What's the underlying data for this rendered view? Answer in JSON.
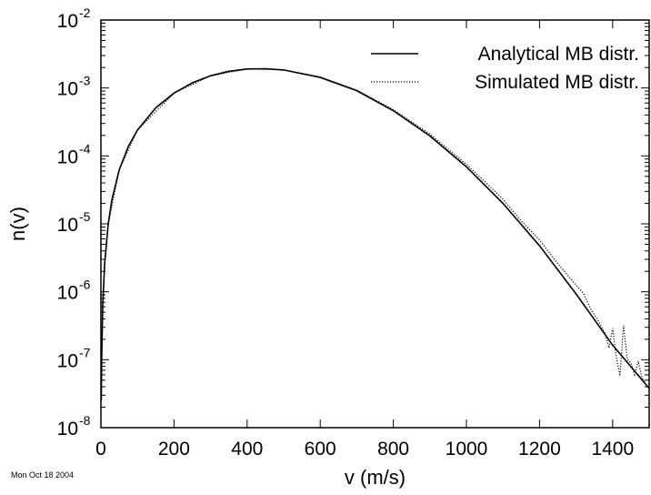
{
  "chart_data": {
    "type": "line",
    "title": "",
    "xlabel": "v (m/s)",
    "ylabel": "n(v)",
    "xlim": [
      0,
      1500
    ],
    "ylim": [
      1e-08,
      0.01
    ],
    "y_scale": "log",
    "grid": false,
    "legend_position": "top-right",
    "x_ticks": [
      0,
      200,
      400,
      600,
      800,
      1000,
      1200,
      1400
    ],
    "x_tick_labels": [
      "0",
      "200",
      "400",
      "600",
      "800",
      "1000",
      "1200",
      "1400"
    ],
    "y_ticks": [
      {
        "value": 1e-08,
        "base": "10",
        "exp": "-8"
      },
      {
        "value": 1e-07,
        "base": "10",
        "exp": "-7"
      },
      {
        "value": 1e-06,
        "base": "10",
        "exp": "-6"
      },
      {
        "value": 1e-05,
        "base": "10",
        "exp": "-5"
      },
      {
        "value": 0.0001,
        "base": "10",
        "exp": "-4"
      },
      {
        "value": 0.001,
        "base": "10",
        "exp": "-3"
      },
      {
        "value": 0.01,
        "base": "10",
        "exp": "-2"
      }
    ],
    "series": [
      {
        "name": "Analytical MB distr.",
        "style": "solid",
        "color": "#000000",
        "x": [
          1,
          2,
          5,
          10,
          20,
          30,
          50,
          75,
          100,
          150,
          200,
          250,
          300,
          350,
          400,
          450,
          500,
          600,
          700,
          800,
          900,
          1000,
          1100,
          1200,
          1300,
          1400,
          1500
        ],
        "y": [
          2.5e-08,
          1e-07,
          6.26e-07,
          2.5e-06,
          1e-05,
          2.25e-05,
          6.22e-05,
          0.000138,
          0.00024,
          0.00051,
          0.00084,
          0.00119,
          0.00151,
          0.00176,
          0.0019,
          0.00192,
          0.00184,
          0.00143,
          0.000913,
          0.000463,
          0.000197,
          6.9e-05,
          2e-05,
          4.76e-06,
          9.3e-07,
          1.64e-07,
          3.8e-08
        ]
      },
      {
        "name": "Simulated MB distr.",
        "style": "dotted",
        "color": "#000000",
        "x": [
          5,
          10,
          20,
          50,
          100,
          200,
          300,
          400,
          500,
          600,
          700,
          800,
          900,
          1000,
          1050,
          1100,
          1150,
          1200,
          1250,
          1300,
          1320,
          1340,
          1360,
          1380,
          1390,
          1400,
          1410,
          1420,
          1430,
          1440,
          1450,
          1460,
          1470,
          1480,
          1490
        ],
        "y": [
          6.2e-07,
          2.5e-06,
          1e-05,
          6.2e-05,
          0.00024,
          0.00084,
          0.00151,
          0.0019,
          0.00185,
          0.00145,
          0.00093,
          0.00048,
          0.00021,
          7.5e-05,
          4.2e-05,
          2.3e-05,
          1.1e-05,
          5.8e-06,
          2.6e-06,
          1.25e-06,
          9.5e-07,
          5.6e-07,
          3.8e-07,
          2.4e-07,
          1.5e-07,
          2.9e-07,
          1.1e-07,
          5.8e-08,
          3.2e-07,
          1e-07,
          9e-08,
          6e-08,
          9.5e-08,
          5.5e-08,
          4.5e-08
        ]
      }
    ]
  },
  "date_stamp": "Mon Oct 18 2004"
}
